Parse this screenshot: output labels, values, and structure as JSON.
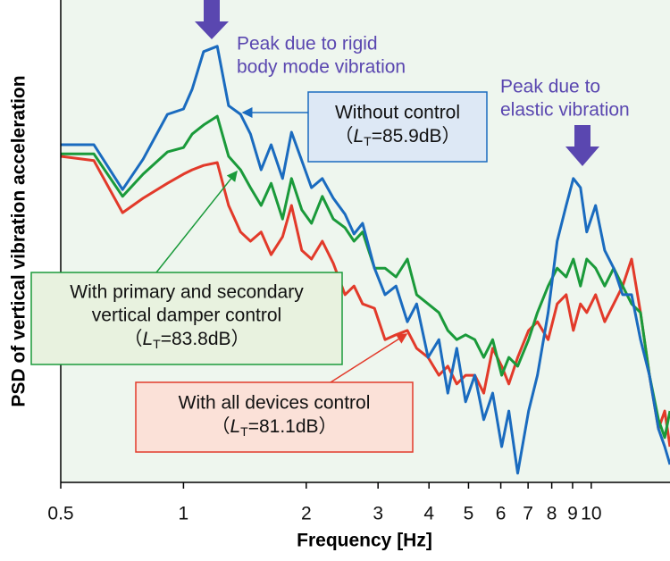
{
  "chart_data": {
    "type": "line",
    "ylabel": "PSD of vertical vibration acceleration",
    "xlabel": "Frequency [Hz]",
    "xscale": "log",
    "xlim": [
      0.5,
      15.6
    ],
    "ylim": [
      0,
      100
    ],
    "xticks": [
      0.5,
      1,
      2,
      3,
      4,
      5,
      6,
      7,
      8,
      9,
      10
    ],
    "x": [
      0.5,
      0.603,
      0.709,
      0.796,
      0.913,
      1.0,
      1.05,
      1.12,
      1.21,
      1.29,
      1.38,
      1.46,
      1.55,
      1.64,
      1.75,
      1.84,
      1.95,
      2.06,
      2.19,
      2.33,
      2.49,
      2.62,
      2.75,
      2.94,
      3.12,
      3.32,
      3.54,
      3.73,
      3.98,
      4.23,
      4.45,
      4.68,
      4.92,
      5.18,
      5.45,
      5.73,
      6.03,
      6.28,
      6.6,
      7.02,
      7.38,
      7.84,
      8.25,
      8.68,
      9.04,
      9.41,
      9.75,
      10.25,
      10.79,
      11.35,
      11.94,
      12.56,
      13.21,
      13.89,
      14.62,
      15.14,
      15.6
    ],
    "series": [
      {
        "color": "#1a6bbf",
        "values": [
          70.0,
          70.0,
          60.7,
          67.0,
          76.3,
          77.4,
          81.5,
          89.3,
          90.4,
          78.1,
          76.3,
          72.2,
          64.8,
          70.0,
          63.0,
          72.6,
          66.7,
          61.1,
          63.0,
          58.9,
          55.6,
          51.5,
          53.7,
          44.4,
          38.9,
          40.7,
          33.3,
          37.0,
          25.9,
          29.6,
          18.5,
          27.8,
          16.7,
          22.2,
          13.0,
          18.5,
          7.4,
          14.8,
          1.9,
          14.8,
          22.2,
          35.2,
          50.0,
          57.4,
          63.0,
          61.1,
          51.9,
          57.4,
          48.1,
          44.4,
          38.9,
          38.9,
          29.6,
          22.2,
          11.1,
          7.4,
          3.7
        ],
        "label": {
          "lines": [
            "Without control"
          ],
          "lt": [
            "（",
            "L",
            "T",
            "=85.9dB）"
          ]
        }
      },
      {
        "color": "#1a9a3a",
        "values": [
          68.1,
          68.1,
          59.3,
          63.9,
          68.5,
          69.4,
          72.2,
          74.1,
          75.9,
          67.6,
          64.8,
          61.1,
          57.4,
          62.0,
          54.6,
          63.0,
          56.5,
          53.7,
          59.3,
          54.6,
          52.8,
          50.0,
          51.9,
          44.4,
          44.4,
          42.6,
          46.3,
          38.9,
          37.0,
          35.2,
          31.5,
          29.6,
          30.6,
          29.6,
          25.9,
          29.6,
          22.2,
          25.9,
          24.1,
          29.6,
          35.2,
          40.7,
          44.4,
          42.6,
          46.3,
          40.7,
          46.3,
          44.4,
          40.7,
          44.4,
          40.7,
          37.0,
          35.2,
          22.2,
          13.0,
          9.3,
          14.8
        ],
        "label": {
          "lines": [
            "With primary and secondary",
            "vertical damper control"
          ],
          "lt": [
            "（",
            "L",
            "T",
            "=83.8dB）"
          ]
        }
      },
      {
        "color": "#e23a2a",
        "values": [
          67.6,
          66.7,
          55.9,
          58.9,
          62.0,
          63.9,
          64.8,
          65.7,
          66.3,
          57.4,
          51.9,
          50.0,
          51.9,
          47.2,
          50.9,
          57.4,
          48.1,
          46.3,
          50.0,
          45.4,
          38.9,
          40.7,
          37.0,
          36.1,
          29.6,
          30.6,
          31.5,
          27.8,
          25.9,
          22.2,
          24.1,
          20.4,
          22.2,
          22.2,
          18.5,
          27.8,
          24.1,
          20.4,
          25.9,
          31.5,
          33.3,
          29.6,
          37.0,
          38.9,
          31.5,
          37.0,
          35.2,
          38.9,
          33.3,
          37.0,
          40.7,
          46.3,
          35.2,
          22.2,
          11.1,
          14.8,
          7.4
        ],
        "label": {
          "lines": [
            "With all devices control"
          ],
          "lt": [
            "（",
            "L",
            "T",
            "=81.1dB）"
          ]
        }
      }
    ],
    "annotations": [
      {
        "lines": [
          "Peak due to rigid",
          "body mode vibration"
        ]
      },
      {
        "lines": [
          "Peak due to",
          "elastic vibration"
        ]
      }
    ]
  }
}
